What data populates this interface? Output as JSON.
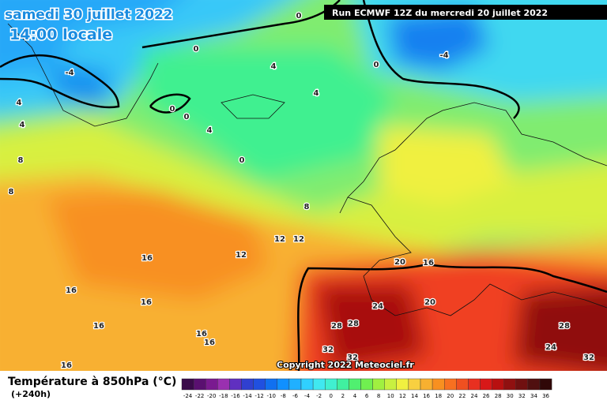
{
  "header": {
    "date": "samedi 30 juillet 2022",
    "time": "14:00 locale",
    "run": "Run ECMWF 12Z du mercredi 20 juillet 2022"
  },
  "copyright": "Copyright 2022 Meteociel.fr",
  "legend": {
    "title": "Température à 850hPa (°C)",
    "lead": "(+240h)",
    "scale": [
      -24,
      -22,
      -20,
      -18,
      -16,
      -14,
      -12,
      -10,
      -8,
      -6,
      -4,
      -2,
      0,
      2,
      4,
      6,
      8,
      10,
      12,
      14,
      16,
      18,
      20,
      22,
      24,
      26,
      28,
      30,
      32,
      34,
      36
    ],
    "colors": [
      "#3a0a4a",
      "#5a1070",
      "#7a1a90",
      "#9a30b0",
      "#6030c0",
      "#3040d0",
      "#2050e0",
      "#1070f0",
      "#1090ff",
      "#20b0ff",
      "#30d0ff",
      "#40e8f0",
      "#40f0d0",
      "#40f0a0",
      "#50f070",
      "#70f050",
      "#a0f040",
      "#c8f040",
      "#f0f040",
      "#f8d040",
      "#f8b030",
      "#f89020",
      "#f87020",
      "#f05020",
      "#e83020",
      "#d81818",
      "#b81010",
      "#901010",
      "#701010",
      "#501010",
      "#300808"
    ]
  },
  "contour_labels": [
    0,
    0,
    -4,
    0,
    -4,
    4,
    4,
    4,
    0,
    0,
    4,
    4,
    8,
    0,
    8,
    8,
    12,
    12,
    12,
    16,
    20,
    16,
    16,
    16,
    20,
    24,
    16,
    28,
    28,
    28,
    16,
    16,
    32,
    32,
    24,
    32,
    16
  ]
}
